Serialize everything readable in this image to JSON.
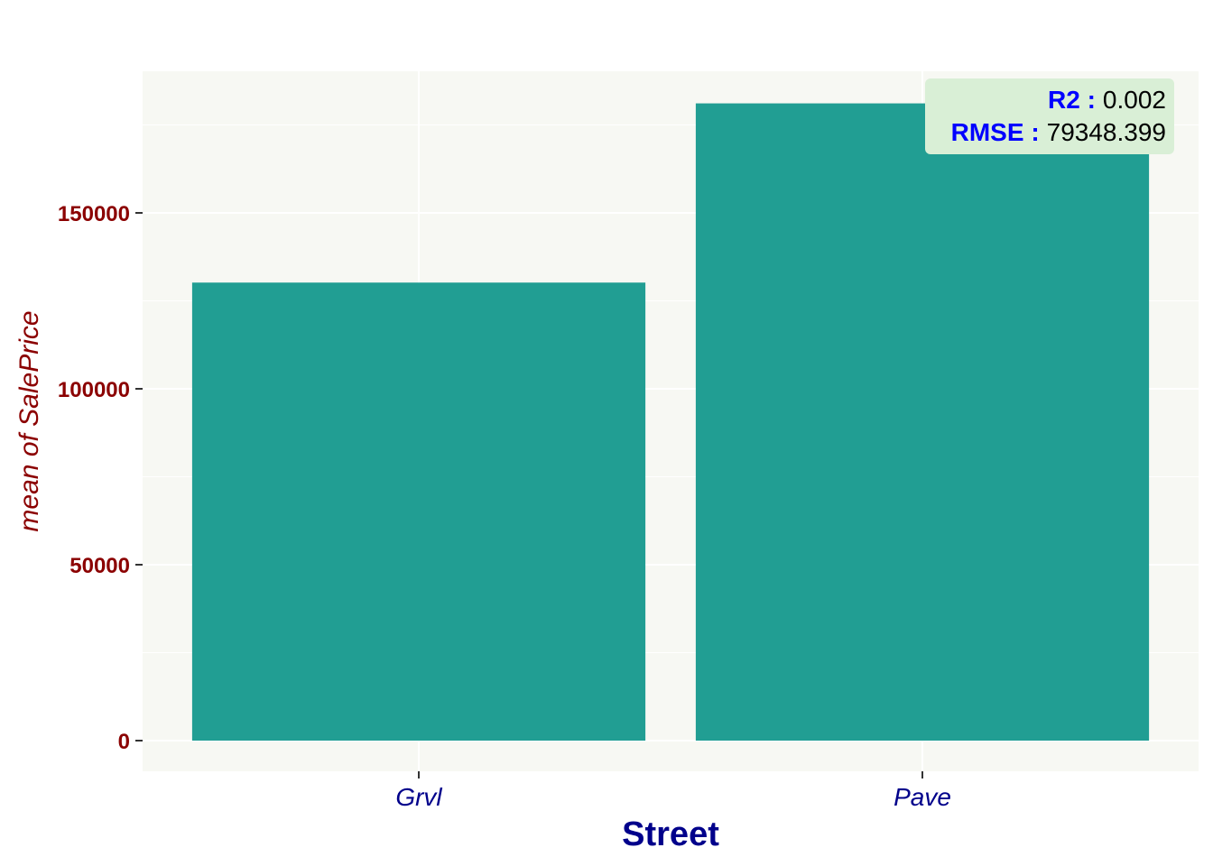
{
  "chart_data": {
    "type": "bar",
    "categories": [
      "Grvl",
      "Pave"
    ],
    "values": [
      130190,
      181131
    ],
    "xlabel": "Street",
    "ylabel": "mean of SalePrice",
    "ylim": [
      0,
      185000
    ],
    "yticks": [
      0,
      50000,
      100000,
      150000
    ],
    "ytick_labels": [
      "0",
      "50000",
      "100000",
      "150000"
    ],
    "grid": true,
    "colors": {
      "bar": "#219e93",
      "panel": "#f7f8f3",
      "grid": "#ffffff",
      "stats_box": "#d9efd6"
    },
    "annotation": {
      "position": "top-right",
      "r2_label": "R2 :",
      "r2_value": "0.002",
      "rmse_label": "RMSE :",
      "rmse_value": "79348.399"
    }
  }
}
